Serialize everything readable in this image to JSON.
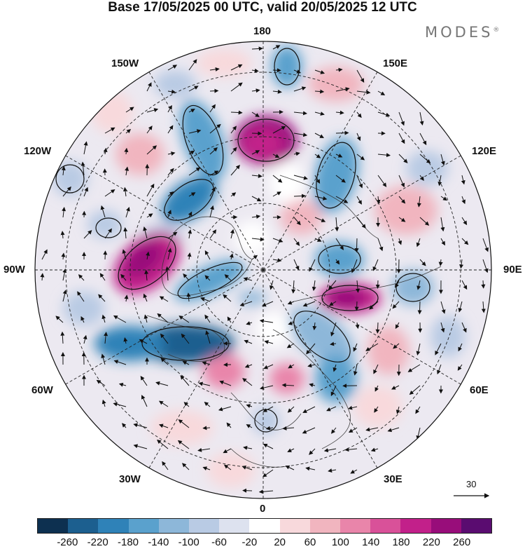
{
  "title": "Base 17/05/2025 00 UTC, valid 20/05/2025 12 UTC",
  "brand": "MODES",
  "brand_mark": "®",
  "longitude_labels": {
    "top": "180",
    "bottom": "0",
    "left": "90W",
    "right": "90E",
    "upper_left_outer": "150W",
    "upper_left_inner": "120W",
    "lower_left_outer": "60W",
    "lower_left_inner": "30W",
    "upper_right_outer": "150E",
    "upper_right_inner": "120E",
    "lower_right_outer": "60E",
    "lower_right_inner": "30E"
  },
  "reference_vector": "30",
  "colorbar": {
    "colors": [
      "#0d3050",
      "#1c5f8f",
      "#2f82b8",
      "#5aa1cd",
      "#8db7d9",
      "#b9cbe4",
      "#dde2ef",
      "#ffffff",
      "#f8d9dc",
      "#f1b5bf",
      "#e985aa",
      "#d95199",
      "#c2208a",
      "#980d7a",
      "#5a0c70"
    ],
    "ticks": [
      "-260",
      "-220",
      "-180",
      "-140",
      "-100",
      "-60",
      "-20",
      "20",
      "60",
      "100",
      "140",
      "180",
      "220",
      "260"
    ]
  }
}
